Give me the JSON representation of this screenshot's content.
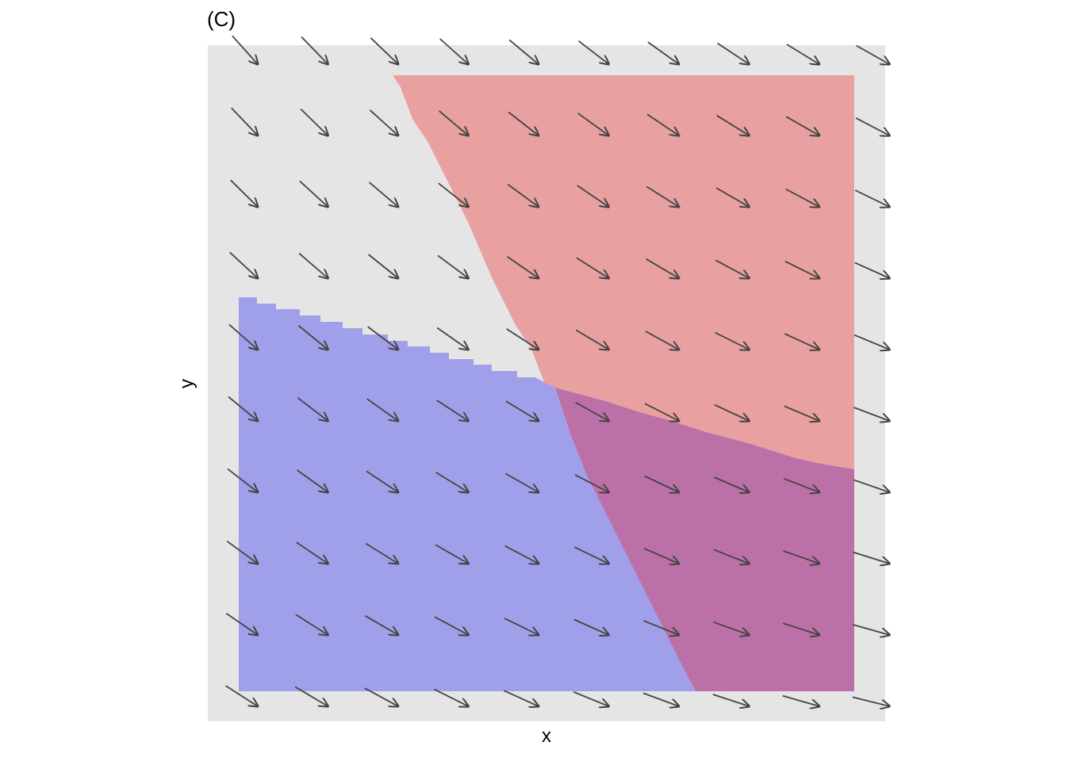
{
  "chart_data": {
    "type": "other",
    "panel_tag": "(C)",
    "xlabel": "x",
    "ylabel": "y",
    "title": "",
    "grid": false,
    "legend": "none",
    "colors": {
      "panel_bg": "#e5e5e5",
      "region_red": "#e8a0a0",
      "region_blue": "#a0a0ea",
      "region_overlap": "#bc70a8",
      "arrow": "#444444"
    },
    "regions": [
      {
        "id": "red",
        "color": "#e8a0a0"
      },
      {
        "id": "blue",
        "color": "#a0a0ea"
      },
      {
        "id": "overlap",
        "color": "#bc70a8"
      }
    ],
    "vector_field": {
      "rows": 10,
      "cols": 10
    }
  }
}
